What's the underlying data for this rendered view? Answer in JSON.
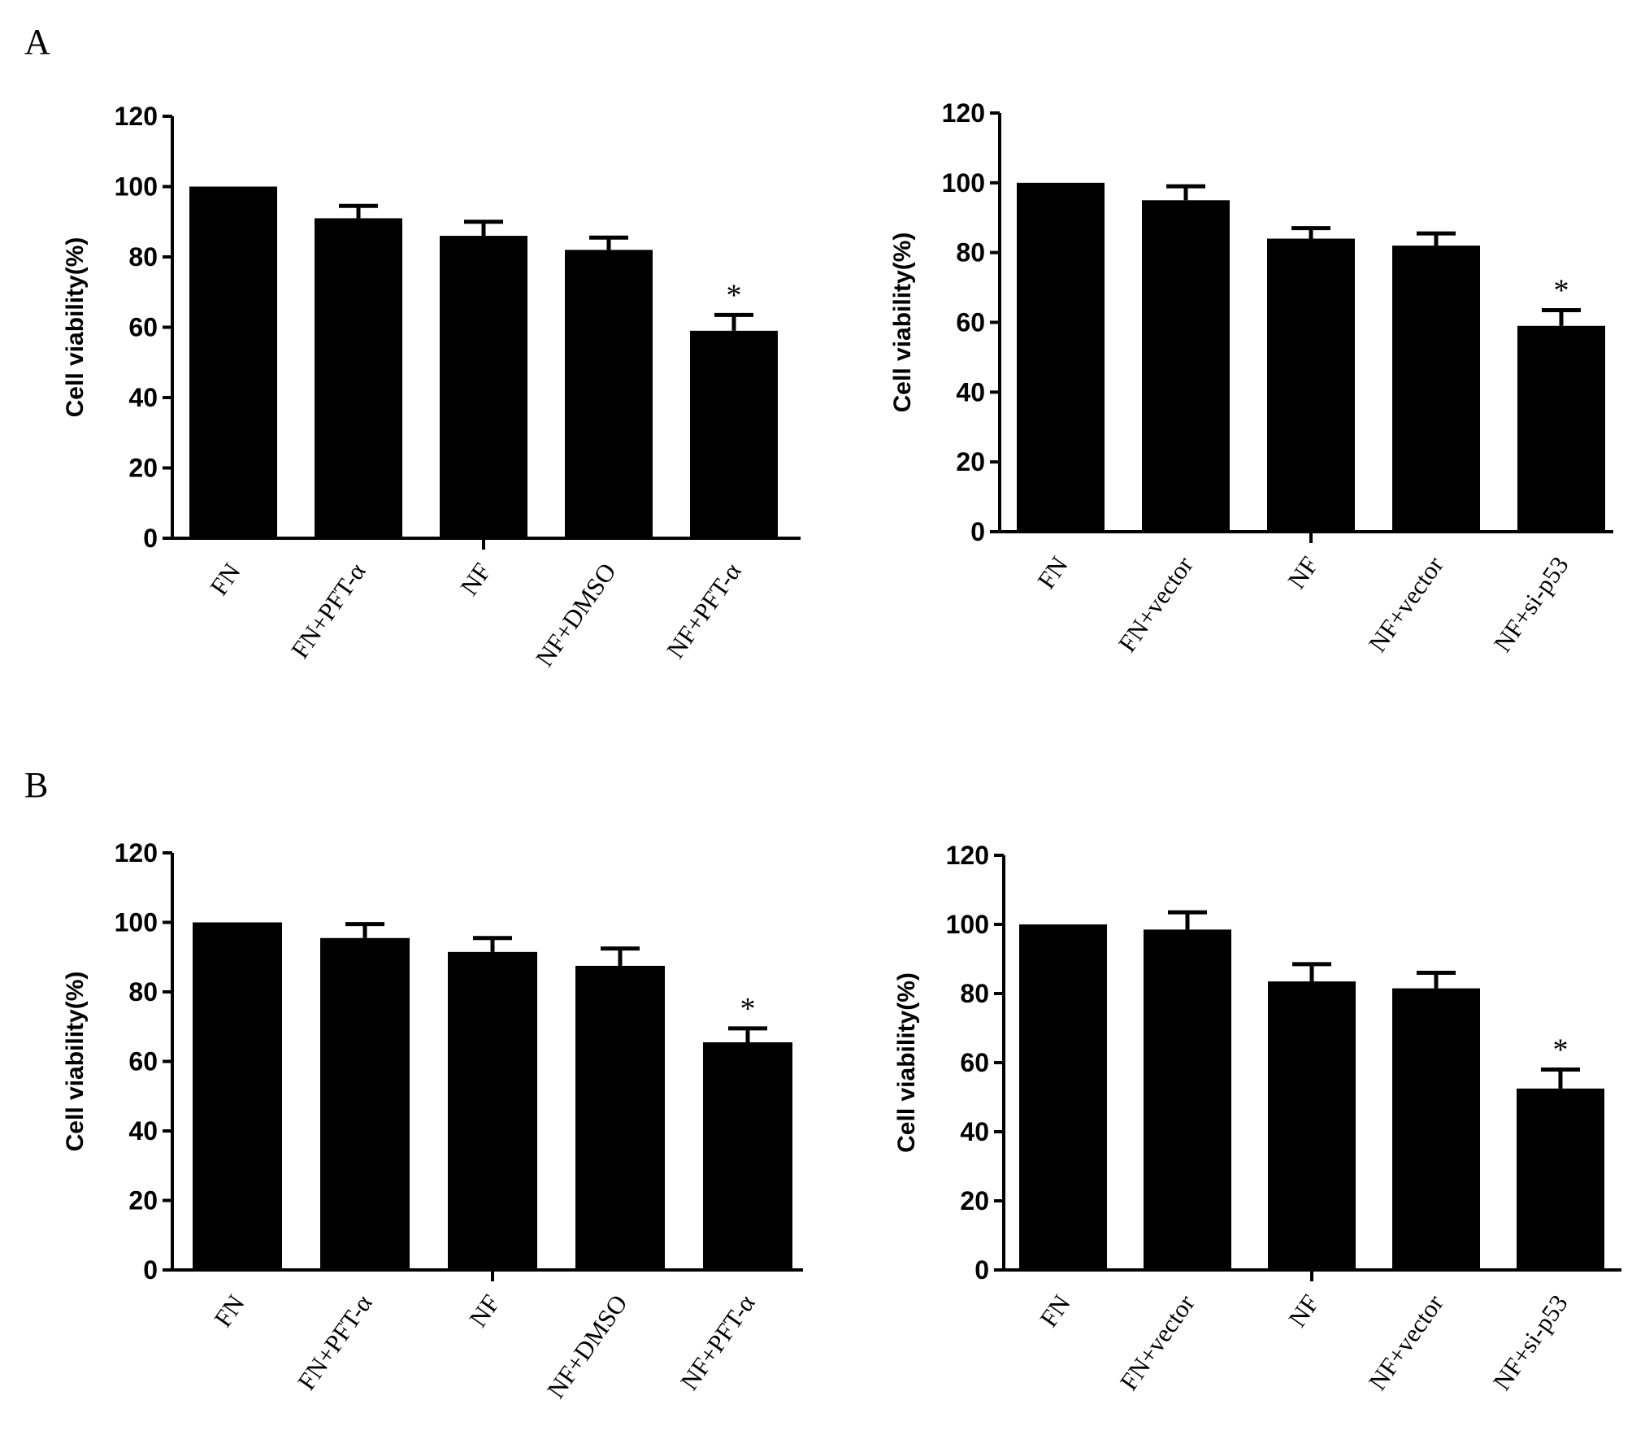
{
  "figure": {
    "panel_labels": [
      "A",
      "B"
    ]
  },
  "chart_data": [
    {
      "type": "bar",
      "panel": "A",
      "ylabel": "Cell viability(%)",
      "ylim": [
        0,
        120
      ],
      "yticks": [
        0,
        20,
        40,
        60,
        80,
        100,
        120
      ],
      "categories": [
        "FN",
        "FN+PFT-α",
        "NF",
        "NF+DMSO",
        "NF+PFT-α"
      ],
      "values": [
        100,
        91,
        86,
        82,
        59
      ],
      "errors": [
        0,
        3.5,
        4,
        3.5,
        4.5
      ],
      "significance": [
        "",
        "",
        "",
        "",
        "*"
      ],
      "bar_color": "#000000"
    },
    {
      "type": "bar",
      "panel": "A",
      "ylabel": "Cell viability(%)",
      "ylim": [
        0,
        120
      ],
      "yticks": [
        0,
        20,
        40,
        60,
        80,
        100,
        120
      ],
      "categories": [
        "FN",
        "FN+vector",
        "NF",
        "NF+vector",
        "NF+si-p53"
      ],
      "values": [
        100,
        95,
        84,
        82,
        59
      ],
      "errors": [
        0,
        4,
        3,
        3.5,
        4.5
      ],
      "significance": [
        "",
        "",
        "",
        "",
        "*"
      ],
      "bar_color": "#000000"
    },
    {
      "type": "bar",
      "panel": "B",
      "ylabel": "Cell viability(%)",
      "ylim": [
        0,
        120
      ],
      "yticks": [
        0,
        20,
        40,
        60,
        80,
        100,
        120
      ],
      "categories": [
        "FN",
        "FN+PFT-α",
        "NF",
        "NF+DMSO",
        "NF+PFT-α"
      ],
      "values": [
        100,
        95.5,
        91.5,
        87.5,
        65.5
      ],
      "errors": [
        0,
        4,
        4,
        5,
        4
      ],
      "significance": [
        "",
        "",
        "",
        "",
        "*"
      ],
      "bar_color": "#000000"
    },
    {
      "type": "bar",
      "panel": "B",
      "ylabel": "Cell viability(%)",
      "ylim": [
        0,
        120
      ],
      "yticks": [
        0,
        20,
        40,
        60,
        80,
        100,
        120
      ],
      "categories": [
        "FN",
        "FN+vector",
        "NF",
        "NF+vector",
        "NF+si-p53"
      ],
      "values": [
        100,
        98.5,
        83.5,
        81.5,
        52.5
      ],
      "errors": [
        0,
        5,
        5,
        4.5,
        5.5
      ],
      "significance": [
        "",
        "",
        "",
        "",
        "*"
      ],
      "bar_color": "#000000"
    }
  ]
}
